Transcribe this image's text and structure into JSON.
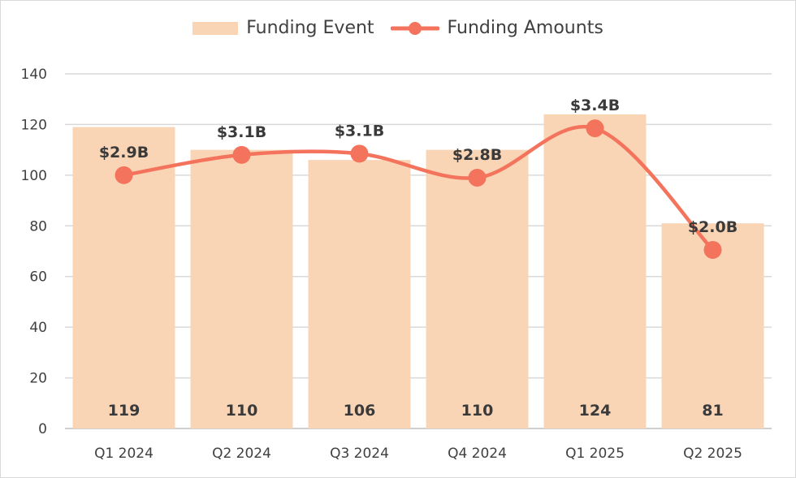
{
  "chart_data": {
    "type": "bar",
    "categories": [
      "Q1 2024",
      "Q2 2024",
      "Q3 2024",
      "Q4 2024",
      "Q1 2025",
      "Q2 2025"
    ],
    "series": [
      {
        "name": "Funding Event",
        "kind": "bar",
        "color": "#f9d5b6",
        "values": [
          119,
          110,
          106,
          110,
          124,
          81
        ]
      },
      {
        "name": "Funding Amounts",
        "kind": "line",
        "smooth": true,
        "color": "#f4735c",
        "values": [
          100,
          108,
          108.5,
          99,
          118.5,
          70.5
        ],
        "labels": [
          "$2.9B",
          "$3.1B",
          "$3.1B",
          "$2.8B",
          "$3.4B",
          "$2.0B"
        ]
      }
    ],
    "ylim": [
      0,
      140
    ],
    "yticks": [
      0,
      20,
      40,
      60,
      80,
      100,
      120,
      140
    ],
    "grid": true,
    "legend_position": "top-center"
  }
}
